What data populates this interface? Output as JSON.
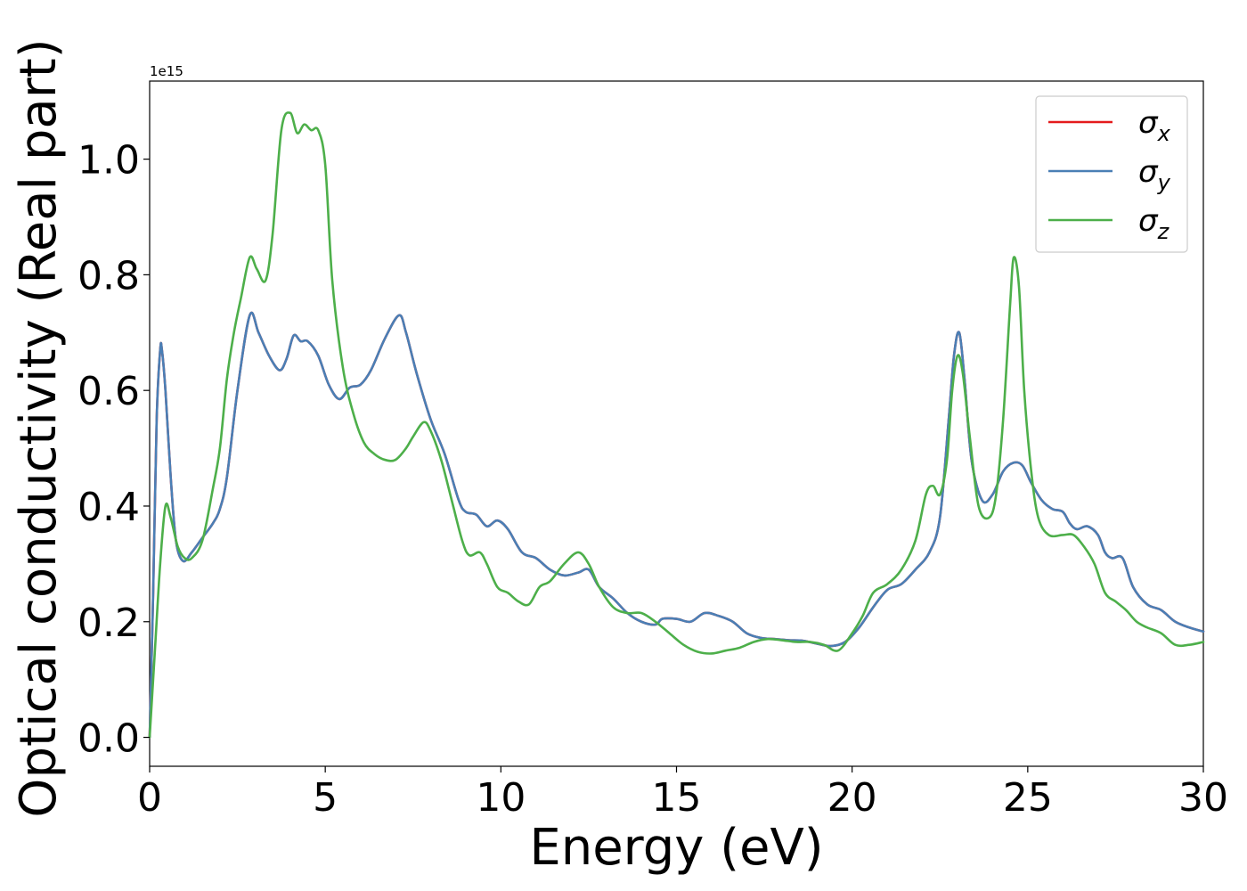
{
  "chart_data": {
    "type": "line",
    "xlabel": "Energy (eV)",
    "ylabel": "Optical conductivity (Real part)",
    "y_offset_text": "1e15",
    "xlim": [
      0,
      30
    ],
    "ylim": [
      -0.05,
      1.135
    ],
    "x_ticks": [
      0,
      5,
      10,
      15,
      20,
      25,
      30
    ],
    "x_tick_labels": [
      "0",
      "5",
      "10",
      "15",
      "20",
      "25",
      "30"
    ],
    "y_ticks": [
      0.0,
      0.2,
      0.4,
      0.6,
      0.8,
      1.0
    ],
    "y_tick_labels": [
      "0.0",
      "0.2",
      "0.4",
      "0.6",
      "0.8",
      "1.0"
    ],
    "grid": false,
    "legend_position": "top-right",
    "series": [
      {
        "name": "σx",
        "label_base": "σ",
        "label_sub": "x",
        "color": "#e41a1c",
        "x": [
          0,
          0.1,
          0.2,
          0.3,
          0.35,
          0.45,
          0.6,
          0.75,
          0.95,
          1.2,
          1.5,
          1.8,
          2.0,
          2.2,
          2.5,
          2.85,
          3.1,
          3.4,
          3.7,
          3.9,
          4.1,
          4.3,
          4.5,
          4.8,
          5.1,
          5.4,
          5.7,
          6.0,
          6.3,
          6.7,
          7.1,
          7.3,
          7.6,
          8.0,
          8.4,
          8.8,
          9.0,
          9.3,
          9.6,
          9.9,
          10.2,
          10.6,
          11.0,
          11.4,
          11.8,
          12.2,
          12.5,
          12.8,
          13.2,
          13.6,
          14.0,
          14.4,
          14.6,
          15.0,
          15.4,
          15.8,
          16.2,
          16.6,
          17.0,
          17.4,
          17.8,
          18.2,
          18.6,
          19.0,
          19.4,
          19.8,
          20.2,
          20.6,
          21.0,
          21.4,
          21.8,
          22.2,
          22.5,
          22.75,
          22.9,
          23.05,
          23.2,
          23.4,
          23.7,
          24.0,
          24.3,
          24.6,
          24.85,
          25.1,
          25.4,
          25.7,
          26.0,
          26.2,
          26.4,
          26.7,
          27.0,
          27.2,
          27.4,
          27.7,
          28.0,
          28.4,
          28.8,
          29.2,
          29.6,
          30.0
        ],
        "y": [
          0.0,
          0.25,
          0.55,
          0.67,
          0.67,
          0.6,
          0.45,
          0.34,
          0.305,
          0.32,
          0.345,
          0.37,
          0.395,
          0.45,
          0.6,
          0.73,
          0.7,
          0.66,
          0.635,
          0.655,
          0.695,
          0.685,
          0.685,
          0.66,
          0.61,
          0.585,
          0.605,
          0.61,
          0.635,
          0.69,
          0.73,
          0.7,
          0.63,
          0.55,
          0.49,
          0.41,
          0.39,
          0.385,
          0.365,
          0.375,
          0.36,
          0.32,
          0.31,
          0.29,
          0.28,
          0.285,
          0.29,
          0.26,
          0.24,
          0.215,
          0.2,
          0.195,
          0.205,
          0.205,
          0.2,
          0.215,
          0.21,
          0.2,
          0.18,
          0.172,
          0.17,
          0.168,
          0.167,
          0.162,
          0.158,
          0.165,
          0.19,
          0.225,
          0.255,
          0.265,
          0.29,
          0.32,
          0.38,
          0.55,
          0.66,
          0.7,
          0.62,
          0.48,
          0.41,
          0.42,
          0.46,
          0.475,
          0.47,
          0.44,
          0.41,
          0.395,
          0.39,
          0.37,
          0.36,
          0.365,
          0.35,
          0.32,
          0.31,
          0.31,
          0.26,
          0.23,
          0.22,
          0.2,
          0.19,
          0.183
        ]
      },
      {
        "name": "σy",
        "label_base": "σ",
        "label_sub": "y",
        "color": "#4a7fb5",
        "x": [
          0,
          0.1,
          0.2,
          0.3,
          0.35,
          0.45,
          0.6,
          0.75,
          0.95,
          1.2,
          1.5,
          1.8,
          2.0,
          2.2,
          2.5,
          2.85,
          3.1,
          3.4,
          3.7,
          3.9,
          4.1,
          4.3,
          4.5,
          4.8,
          5.1,
          5.4,
          5.7,
          6.0,
          6.3,
          6.7,
          7.1,
          7.3,
          7.6,
          8.0,
          8.4,
          8.8,
          9.0,
          9.3,
          9.6,
          9.9,
          10.2,
          10.6,
          11.0,
          11.4,
          11.8,
          12.2,
          12.5,
          12.8,
          13.2,
          13.6,
          14.0,
          14.4,
          14.6,
          15.0,
          15.4,
          15.8,
          16.2,
          16.6,
          17.0,
          17.4,
          17.8,
          18.2,
          18.6,
          19.0,
          19.4,
          19.8,
          20.2,
          20.6,
          21.0,
          21.4,
          21.8,
          22.2,
          22.5,
          22.75,
          22.9,
          23.05,
          23.2,
          23.4,
          23.7,
          24.0,
          24.3,
          24.6,
          24.85,
          25.1,
          25.4,
          25.7,
          26.0,
          26.2,
          26.4,
          26.7,
          27.0,
          27.2,
          27.4,
          27.7,
          28.0,
          28.4,
          28.8,
          29.2,
          29.6,
          30.0
        ],
        "y": [
          0.0,
          0.25,
          0.55,
          0.67,
          0.67,
          0.6,
          0.45,
          0.34,
          0.305,
          0.32,
          0.345,
          0.37,
          0.395,
          0.45,
          0.6,
          0.73,
          0.7,
          0.66,
          0.635,
          0.655,
          0.695,
          0.685,
          0.685,
          0.66,
          0.61,
          0.585,
          0.605,
          0.61,
          0.635,
          0.69,
          0.73,
          0.7,
          0.63,
          0.55,
          0.49,
          0.41,
          0.39,
          0.385,
          0.365,
          0.375,
          0.36,
          0.32,
          0.31,
          0.29,
          0.28,
          0.285,
          0.29,
          0.26,
          0.24,
          0.215,
          0.2,
          0.195,
          0.205,
          0.205,
          0.2,
          0.215,
          0.21,
          0.2,
          0.18,
          0.172,
          0.17,
          0.168,
          0.167,
          0.162,
          0.158,
          0.165,
          0.19,
          0.225,
          0.255,
          0.265,
          0.29,
          0.32,
          0.38,
          0.55,
          0.66,
          0.7,
          0.62,
          0.48,
          0.41,
          0.42,
          0.46,
          0.475,
          0.47,
          0.44,
          0.41,
          0.395,
          0.39,
          0.37,
          0.36,
          0.365,
          0.35,
          0.32,
          0.31,
          0.31,
          0.26,
          0.23,
          0.22,
          0.2,
          0.19,
          0.183
        ]
      },
      {
        "name": "σz",
        "label_base": "σ",
        "label_sub": "z",
        "color": "#4daf4a",
        "x": [
          0,
          0.15,
          0.3,
          0.45,
          0.6,
          0.8,
          1.0,
          1.2,
          1.5,
          1.8,
          2.0,
          2.2,
          2.4,
          2.6,
          2.85,
          3.05,
          3.3,
          3.5,
          3.75,
          4.0,
          4.2,
          4.4,
          4.6,
          4.8,
          5.0,
          5.2,
          5.5,
          5.8,
          6.1,
          6.4,
          6.7,
          7.0,
          7.3,
          7.5,
          7.8,
          8.0,
          8.3,
          8.6,
          8.9,
          9.1,
          9.4,
          9.6,
          9.9,
          10.2,
          10.5,
          10.8,
          11.1,
          11.4,
          11.8,
          12.2,
          12.5,
          12.8,
          13.2,
          13.6,
          14.0,
          14.4,
          14.8,
          15.2,
          15.6,
          16.0,
          16.4,
          16.8,
          17.2,
          17.6,
          18.0,
          18.4,
          18.8,
          19.2,
          19.6,
          20.0,
          20.3,
          20.6,
          21.0,
          21.4,
          21.8,
          22.1,
          22.3,
          22.5,
          22.7,
          22.85,
          23.0,
          23.15,
          23.35,
          23.6,
          23.9,
          24.1,
          24.3,
          24.5,
          24.6,
          24.75,
          24.9,
          25.1,
          25.3,
          25.6,
          26.0,
          26.3,
          26.6,
          26.9,
          27.2,
          27.5,
          27.8,
          28.1,
          28.4,
          28.8,
          29.2,
          29.6,
          30.0
        ],
        "y": [
          0.0,
          0.15,
          0.3,
          0.4,
          0.38,
          0.33,
          0.31,
          0.31,
          0.34,
          0.43,
          0.5,
          0.62,
          0.7,
          0.76,
          0.83,
          0.81,
          0.79,
          0.87,
          1.05,
          1.08,
          1.045,
          1.06,
          1.05,
          1.05,
          0.99,
          0.79,
          0.64,
          0.56,
          0.51,
          0.49,
          0.48,
          0.48,
          0.5,
          0.52,
          0.545,
          0.53,
          0.48,
          0.41,
          0.34,
          0.315,
          0.32,
          0.3,
          0.26,
          0.25,
          0.235,
          0.23,
          0.26,
          0.27,
          0.3,
          0.32,
          0.3,
          0.26,
          0.225,
          0.215,
          0.215,
          0.2,
          0.18,
          0.16,
          0.148,
          0.145,
          0.15,
          0.155,
          0.165,
          0.17,
          0.168,
          0.165,
          0.165,
          0.16,
          0.15,
          0.18,
          0.21,
          0.25,
          0.265,
          0.29,
          0.34,
          0.42,
          0.435,
          0.42,
          0.48,
          0.6,
          0.66,
          0.63,
          0.52,
          0.4,
          0.38,
          0.42,
          0.55,
          0.75,
          0.83,
          0.78,
          0.6,
          0.46,
          0.38,
          0.35,
          0.35,
          0.35,
          0.33,
          0.3,
          0.25,
          0.235,
          0.22,
          0.2,
          0.19,
          0.18,
          0.16,
          0.16,
          0.165
        ]
      }
    ]
  }
}
